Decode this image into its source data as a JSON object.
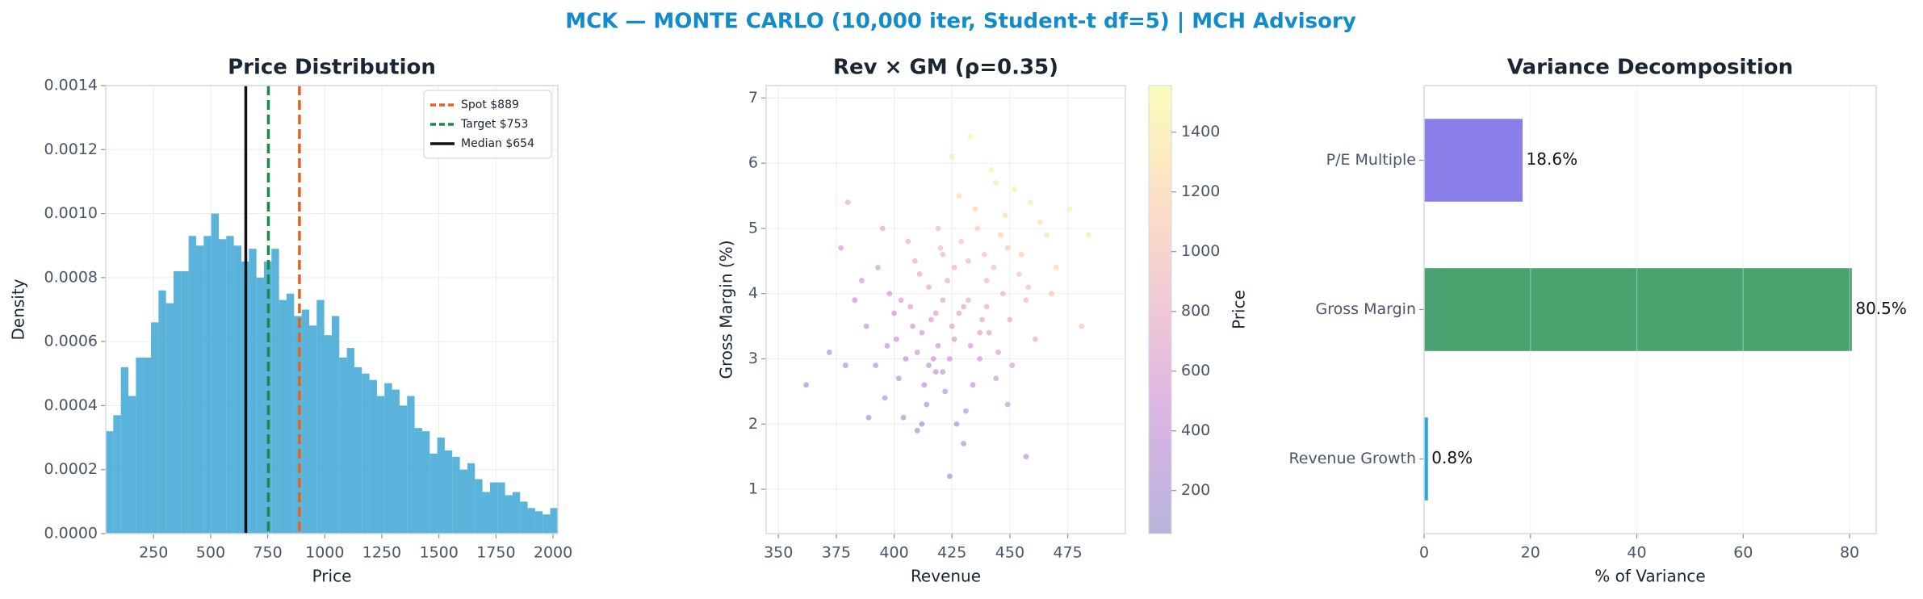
{
  "title": "MCK — MONTE CARLO (10,000 iter, Student-t df=5) | MCH Advisory",
  "chart_data": [
    {
      "type": "histogram",
      "title": "Price Distribution",
      "xlabel": "Price",
      "ylabel": "Density",
      "color": "#4badd8",
      "grid": true,
      "legend": "upper right",
      "bins": [
        40.6,
        73.6,
        106.6,
        139.6,
        172.6,
        205.6,
        238.6,
        271.6,
        304.6,
        337.6,
        370.6,
        403.6,
        436.6,
        469.6,
        502.6,
        535.6,
        568.6,
        601.6,
        634.6,
        667.6,
        700.6,
        733.6,
        766.6,
        799.6,
        832.6,
        865.6,
        898.6,
        931.6,
        964.6,
        997.6,
        1030.6,
        1063.6,
        1096.6,
        1129.6,
        1162.6,
        1195.6,
        1228.6,
        1261.6,
        1294.6,
        1327.6,
        1360.6,
        1393.6,
        1426.6,
        1459.6,
        1492.6,
        1525.6,
        1558.6,
        1591.6,
        1624.6,
        1657.6,
        1690.6,
        1723.6,
        1756.6,
        1789.6,
        1822.6,
        1855.6,
        1888.6,
        1921.6,
        1954.6,
        1987.6,
        2020.6
      ],
      "values": [
        0.00032,
        0.00037,
        0.00052,
        0.00043,
        0.00055,
        0.00055,
        0.00066,
        0.00076,
        0.00072,
        0.00082,
        0.00082,
        0.00093,
        0.0009,
        0.00093,
        0.001,
        0.00092,
        0.00093,
        0.0009,
        0.00085,
        0.00089,
        0.0008,
        0.00085,
        0.00089,
        0.00073,
        0.00075,
        0.00068,
        0.0007,
        0.00065,
        0.00073,
        0.00062,
        0.00068,
        0.00055,
        0.00058,
        0.00052,
        0.0005,
        0.00048,
        0.00043,
        0.00047,
        0.00045,
        0.0004,
        0.00043,
        0.00033,
        0.00032,
        0.00025,
        0.0003,
        0.00026,
        0.00024,
        0.0002,
        0.00022,
        0.00017,
        0.00013,
        0.00016,
        0.00016,
        0.00012,
        0.00013,
        0.0001,
        8e-05,
        7e-05,
        6e-05,
        8e-05
      ],
      "vlines": [
        {
          "name": "Spot $889",
          "value": 889,
          "color": "#e8601c",
          "style": "dashed"
        },
        {
          "name": "Target $753",
          "value": 753,
          "color": "#1a8a4a",
          "style": "dashed"
        },
        {
          "name": "Median $654",
          "value": 654,
          "color": "#111111",
          "style": "solid"
        }
      ],
      "xlim": [
        40.6,
        2021
      ],
      "xticks": [
        250,
        500,
        750,
        1000,
        1250,
        1500,
        1750,
        2000
      ],
      "ylim": [
        0,
        0.0014
      ],
      "yticks": [
        {
          "value": 0,
          "label": "0.0000"
        },
        {
          "value": 0.0002,
          "label": "0.0002"
        },
        {
          "value": 0.0004,
          "label": "0.0004"
        },
        {
          "value": 0.0006,
          "label": "0.0006"
        },
        {
          "value": 0.0008,
          "label": "0.0008"
        },
        {
          "value": 0.001,
          "label": "0.0010"
        },
        {
          "value": 0.0012,
          "label": "0.0012"
        },
        {
          "value": 0.0014,
          "label": "0.0014"
        }
      ]
    },
    {
      "type": "scatter",
      "title": "Rev × GM (ρ=0.35)",
      "xlabel": "Revenue",
      "ylabel": "Gross Margin (%)",
      "colorbar_label": "Price",
      "colormap": "plasma",
      "alpha": 0.3,
      "grid": true,
      "x": [
        425,
        410,
        440,
        418,
        432,
        401,
        455,
        422,
        437,
        415,
        428,
        446,
        392,
        407,
        463,
        419,
        431,
        450,
        398,
        426,
        413,
        441,
        435,
        404,
        458,
        421,
        388,
        444,
        429,
        416,
        452,
        409,
        433,
        396,
        424,
        470,
        412,
        439,
        383,
        427,
        447,
        405,
        436,
        420,
        461,
        400,
        430,
        442,
        414,
        426,
        393,
        454,
        418,
        434,
        448,
        402,
        423,
        466,
        411,
        438,
        379,
        445,
        428,
        417,
        457,
        406,
        432,
        397,
        421,
        476,
        443,
        408,
        419,
        451,
        386,
        437,
        425,
        412,
        449,
        403,
        430,
        395,
        459,
        415,
        440,
        362,
        468,
        380,
        424,
        449,
        372,
        484,
        389,
        433,
        457,
        421,
        377,
        444,
        410,
        481
      ],
      "values": [
        3.5,
        3.1,
        4.2,
        2.8,
        3.9,
        3.3,
        4.6,
        2.5,
        3.0,
        4.1,
        3.7,
        4.9,
        2.9,
        3.8,
        5.1,
        3.2,
        2.2,
        3.6,
        4.0,
        4.4,
        2.6,
        3.4,
        5.3,
        2.1,
        4.1,
        3.9,
        3.5,
        2.7,
        4.8,
        3.6,
        5.6,
        4.5,
        3.2,
        2.4,
        3.0,
        4.4,
        3.4,
        4.6,
        3.9,
        2.0,
        4.0,
        3.0,
        5.0,
        4.7,
        3.3,
        3.7,
        3.8,
        5.9,
        2.3,
        3.3,
        4.4,
        4.3,
        3.7,
        2.6,
        5.2,
        2.7,
        4.2,
        4.9,
        4.3,
        3.6,
        2.9,
        3.1,
        5.5,
        3.0,
        3.9,
        4.8,
        4.5,
        3.2,
        2.8,
        5.3,
        4.4,
        3.5,
        5.0,
        2.9,
        4.2,
        3.4,
        6.1,
        2.0,
        4.7,
        3.9,
        1.7,
        5.0,
        5.4,
        2.9,
        3.8,
        2.6,
        4.0,
        5.4,
        1.2,
        2.3,
        3.1,
        4.9,
        2.1,
        6.4,
        1.5,
        4.6,
        4.7,
        5.7,
        1.9,
        3.5
      ],
      "color_values": [
        650,
        480,
        900,
        420,
        780,
        480,
        1130,
        320,
        560,
        720,
        700,
        1180,
        340,
        600,
        1330,
        500,
        300,
        790,
        560,
        850,
        330,
        660,
        1200,
        210,
        980,
        720,
        400,
        500,
        1000,
        590,
        1400,
        760,
        580,
        230,
        510,
        1230,
        530,
        1000,
        420,
        230,
        870,
        410,
        1130,
        900,
        760,
        500,
        730,
        1450,
        240,
        560,
        560,
        1050,
        630,
        430,
        1280,
        300,
        800,
        1320,
        720,
        700,
        250,
        640,
        1250,
        470,
        900,
        800,
        900,
        380,
        410,
        1500,
        950,
        520,
        990,
        640,
        480,
        640,
        1400,
        170,
        1110,
        580,
        200,
        760,
        1420,
        420,
        780,
        150,
        1090,
        800,
        140,
        480,
        260,
        1430,
        150,
        1530,
        320,
        880,
        580,
        1390,
        170,
        1050
      ],
      "xlim": [
        344.7,
        499.9
      ],
      "xticks": [
        350,
        375,
        400,
        425,
        450,
        475
      ],
      "ylim": [
        0.32,
        7.19
      ],
      "yticks": [
        1,
        2,
        3,
        4,
        5,
        6,
        7
      ],
      "clim": [
        56,
        1556
      ],
      "cticks": [
        200,
        400,
        600,
        800,
        1000,
        1200,
        1400
      ]
    },
    {
      "type": "hbar",
      "title": "Variance Decomposition",
      "xlabel": "% of Variance",
      "grid": true,
      "categories": [
        "P/E Multiple",
        "Gross Margin",
        "Revenue Growth"
      ],
      "values": [
        18.6,
        80.5,
        0.8
      ],
      "value_labels": [
        "18.6%",
        "80.5%",
        "0.8%"
      ],
      "colors": [
        "#8a7ee9",
        "#4aa36f",
        "#2aa7d9"
      ],
      "xlim": [
        0,
        85
      ],
      "xticks": [
        0,
        20,
        40,
        60,
        80
      ]
    }
  ]
}
